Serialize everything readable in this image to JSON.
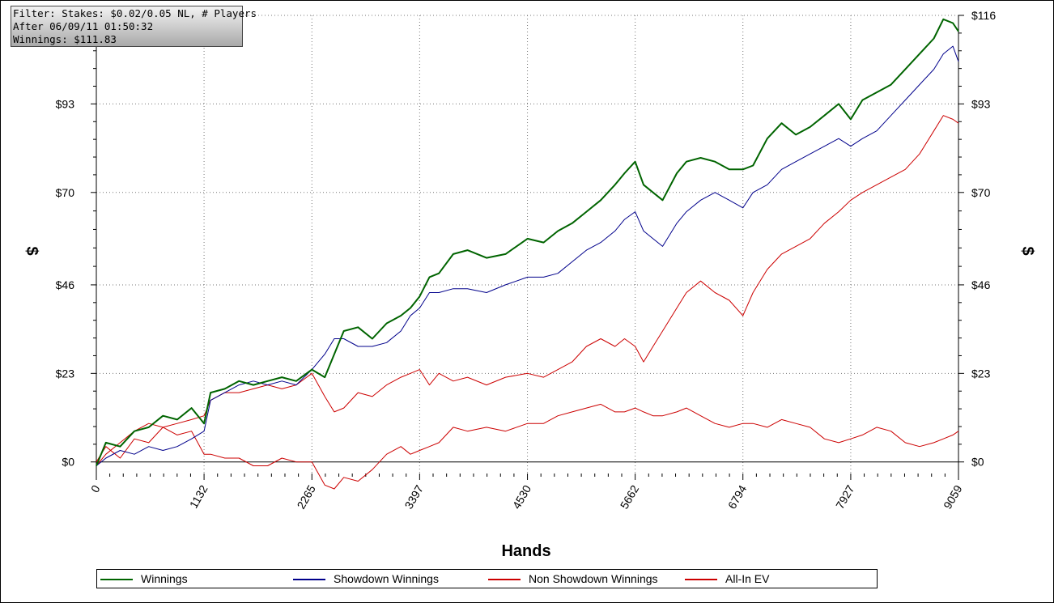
{
  "filter_box": {
    "line1": "Filter: Stakes: $0.02/0.05 NL, # Players",
    "line2": "After 06/09/11 01:50:32",
    "line3": "Winnings: $111.83"
  },
  "chart_data": {
    "type": "line",
    "title": "",
    "xlabel": "Hands",
    "ylabel": "$",
    "xlim": [
      0,
      9059
    ],
    "ylim": [
      -3,
      116
    ],
    "x_ticks": [
      0,
      1132,
      2265,
      3397,
      4530,
      5662,
      6794,
      7927,
      9059
    ],
    "x_tick_labels": [
      "0",
      "1132",
      "2265",
      "3397",
      "4530",
      "5662",
      "6794",
      "7927",
      "9059"
    ],
    "y_ticks": [
      0,
      23,
      46,
      70,
      93,
      116
    ],
    "y_tick_labels": [
      "$0",
      "$23",
      "$46",
      "$70",
      "$93",
      "$116"
    ],
    "grid": true,
    "legend_position": "bottom",
    "series": [
      {
        "name": "Winnings",
        "color": "#006400",
        "x": [
          0,
          100,
          250,
          400,
          550,
          700,
          850,
          1000,
          1132,
          1200,
          1350,
          1500,
          1650,
          1800,
          1950,
          2100,
          2265,
          2400,
          2500,
          2600,
          2750,
          2900,
          3050,
          3200,
          3300,
          3397,
          3500,
          3600,
          3750,
          3900,
          4100,
          4300,
          4530,
          4700,
          4850,
          5000,
          5150,
          5300,
          5450,
          5550,
          5662,
          5750,
          5850,
          5950,
          6100,
          6200,
          6350,
          6500,
          6650,
          6794,
          6900,
          7050,
          7200,
          7350,
          7500,
          7650,
          7800,
          7927,
          8050,
          8200,
          8350,
          8500,
          8650,
          8800,
          8900,
          9000,
          9059
        ],
        "values": [
          -1,
          5,
          4,
          8,
          9,
          12,
          11,
          14,
          10,
          18,
          19,
          21,
          20,
          21,
          22,
          21,
          24,
          22,
          28,
          34,
          35,
          32,
          36,
          38,
          40,
          43,
          48,
          49,
          54,
          55,
          53,
          54,
          58,
          57,
          60,
          62,
          65,
          68,
          72,
          75,
          78,
          72,
          70,
          68,
          75,
          78,
          79,
          78,
          76,
          76,
          77,
          84,
          88,
          85,
          87,
          90,
          93,
          89,
          94,
          96,
          98,
          102,
          106,
          110,
          115,
          114,
          111.83
        ]
      },
      {
        "name": "Showdown Winnings",
        "color": "#00008b",
        "x": [
          0,
          100,
          250,
          400,
          550,
          700,
          850,
          1000,
          1132,
          1200,
          1350,
          1500,
          1650,
          1800,
          1950,
          2100,
          2265,
          2400,
          2500,
          2600,
          2750,
          2900,
          3050,
          3200,
          3300,
          3397,
          3500,
          3600,
          3750,
          3900,
          4100,
          4300,
          4530,
          4700,
          4850,
          5000,
          5150,
          5300,
          5450,
          5550,
          5662,
          5750,
          5850,
          5950,
          6100,
          6200,
          6350,
          6500,
          6650,
          6794,
          6900,
          7050,
          7200,
          7350,
          7500,
          7650,
          7800,
          7927,
          8050,
          8200,
          8350,
          8500,
          8650,
          8800,
          8900,
          9000,
          9059
        ],
        "values": [
          -1,
          1,
          3,
          2,
          4,
          3,
          4,
          6,
          8,
          16,
          18,
          20,
          21,
          20,
          21,
          20,
          24,
          28,
          32,
          32,
          30,
          30,
          31,
          34,
          38,
          40,
          44,
          44,
          45,
          45,
          44,
          46,
          48,
          48,
          49,
          52,
          55,
          57,
          60,
          63,
          65,
          60,
          58,
          56,
          62,
          65,
          68,
          70,
          68,
          66,
          70,
          72,
          76,
          78,
          80,
          82,
          84,
          82,
          84,
          86,
          90,
          94,
          98,
          102,
          106,
          108,
          104
        ]
      },
      {
        "name": "Non Showdown Winnings",
        "color": "#cc0000",
        "x": [
          0,
          100,
          250,
          400,
          550,
          700,
          850,
          1000,
          1132,
          1200,
          1350,
          1500,
          1650,
          1800,
          1950,
          2100,
          2265,
          2400,
          2500,
          2600,
          2750,
          2900,
          3050,
          3200,
          3300,
          3397,
          3500,
          3600,
          3750,
          3900,
          4100,
          4300,
          4530,
          4700,
          4850,
          5000,
          5150,
          5300,
          5450,
          5550,
          5662,
          5750,
          5850,
          5950,
          6100,
          6200,
          6350,
          6500,
          6650,
          6794,
          6900,
          7050,
          7200,
          7350,
          7500,
          7650,
          7800,
          7927,
          8050,
          8200,
          8350,
          8500,
          8650,
          8800,
          8900,
          9000,
          9059
        ],
        "values": [
          0,
          4,
          1,
          6,
          5,
          9,
          7,
          8,
          2,
          2,
          1,
          1,
          -1,
          -1,
          1,
          0,
          0,
          -6,
          -7,
          -4,
          -5,
          -2,
          2,
          4,
          2,
          3,
          4,
          5,
          9,
          8,
          9,
          8,
          10,
          10,
          12,
          13,
          14,
          15,
          13,
          13,
          14,
          13,
          12,
          12,
          13,
          14,
          12,
          10,
          9,
          10,
          10,
          9,
          11,
          10,
          9,
          6,
          5,
          6,
          7,
          9,
          8,
          5,
          4,
          5,
          6,
          7,
          8
        ]
      },
      {
        "name": "All-In EV",
        "color": "#cc0000",
        "x": [
          0,
          100,
          250,
          400,
          550,
          700,
          850,
          1000,
          1132,
          1200,
          1350,
          1500,
          1650,
          1800,
          1950,
          2100,
          2265,
          2400,
          2500,
          2600,
          2750,
          2900,
          3050,
          3200,
          3300,
          3397,
          3500,
          3600,
          3750,
          3900,
          4100,
          4300,
          4530,
          4700,
          4850,
          5000,
          5150,
          5300,
          5450,
          5550,
          5662,
          5750,
          5850,
          5950,
          6100,
          6200,
          6350,
          6500,
          6650,
          6794,
          6900,
          7050,
          7200,
          7350,
          7500,
          7650,
          7800,
          7927,
          8050,
          8200,
          8350,
          8500,
          8650,
          8800,
          8900,
          9000,
          9059
        ],
        "values": [
          -1,
          2,
          5,
          8,
          10,
          9,
          10,
          11,
          12,
          16,
          18,
          18,
          19,
          20,
          19,
          20,
          23,
          17,
          13,
          14,
          18,
          17,
          20,
          22,
          23,
          24,
          20,
          23,
          21,
          22,
          20,
          22,
          23,
          22,
          24,
          26,
          30,
          32,
          30,
          32,
          30,
          26,
          30,
          34,
          40,
          44,
          47,
          44,
          42,
          38,
          44,
          50,
          54,
          56,
          58,
          62,
          65,
          68,
          70,
          72,
          74,
          76,
          80,
          86,
          90,
          89,
          88
        ]
      }
    ]
  }
}
